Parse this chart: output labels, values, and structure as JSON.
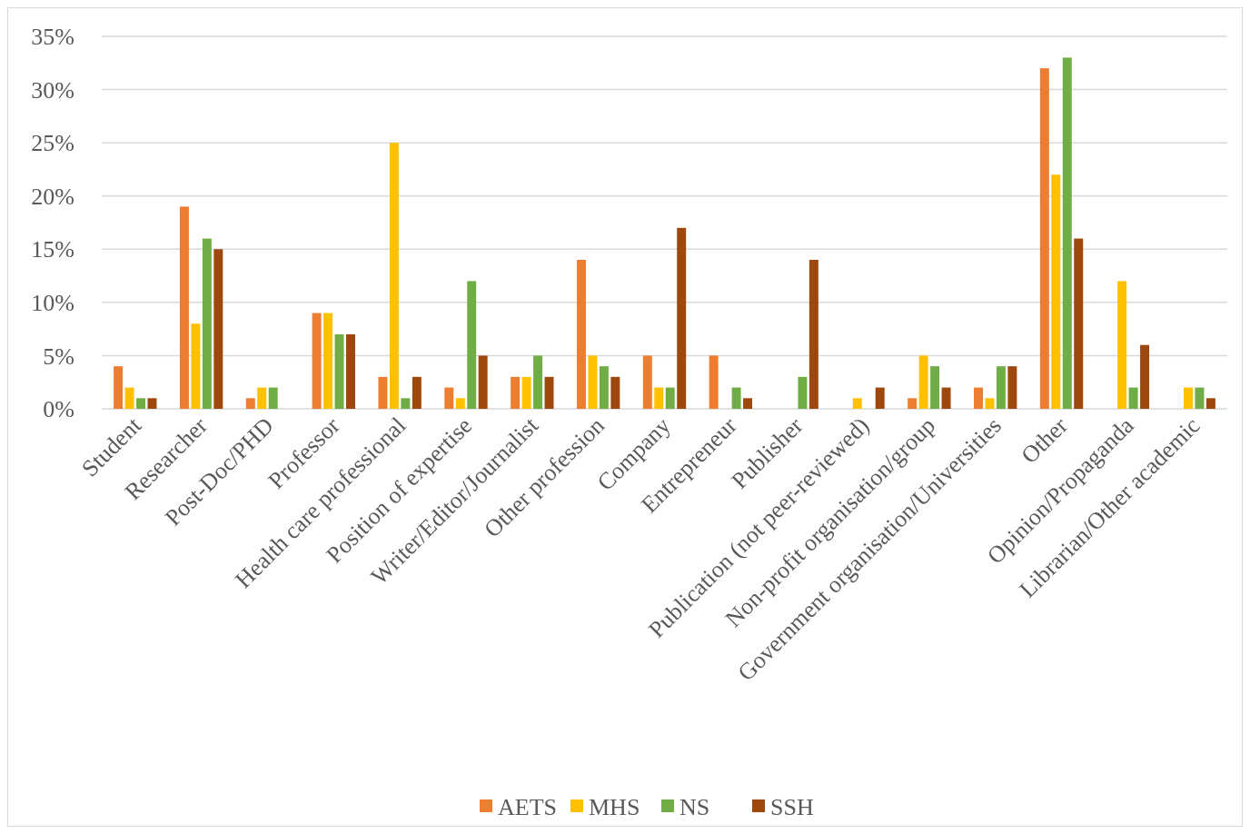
{
  "chart_data": {
    "type": "bar",
    "categories": [
      "Student",
      "Researcher",
      "Post-Doc/PHD",
      "Professor",
      "Health care professional",
      "Position of expertise",
      "Writer/Editor/Journalist",
      "Other profession",
      "Company",
      "Entrepreneur",
      "Publisher",
      "Publication (not peer-reviewed)",
      "Non-profit organisation/group",
      "Government organisation/Universities",
      "Other",
      "Opinion/Propaganda",
      "Librarian/Other academic"
    ],
    "series": [
      {
        "name": "AETS",
        "color": "#ed7d31",
        "values": [
          4,
          19,
          1,
          9,
          3,
          2,
          3,
          14,
          5,
          5,
          null,
          null,
          1,
          2,
          32,
          null,
          null
        ]
      },
      {
        "name": "MHS",
        "color": "#ffc000",
        "values": [
          2,
          8,
          2,
          9,
          25,
          1,
          3,
          5,
          2,
          null,
          null,
          1,
          5,
          1,
          22,
          12,
          2
        ]
      },
      {
        "name": "NS",
        "color": "#70ad47",
        "values": [
          1,
          16,
          2,
          7,
          1,
          12,
          5,
          4,
          2,
          2,
          3,
          null,
          4,
          4,
          33,
          2,
          2
        ]
      },
      {
        "name": "SSH",
        "color": "#9e480e",
        "values": [
          1,
          15,
          null,
          7,
          3,
          5,
          3,
          3,
          17,
          1,
          14,
          2,
          2,
          4,
          16,
          6,
          1
        ]
      }
    ],
    "ylim": [
      0,
      35
    ],
    "yticks": [
      {
        "value": 0,
        "label": "0%"
      },
      {
        "value": 5,
        "label": "5%"
      },
      {
        "value": 10,
        "label": "10%"
      },
      {
        "value": 15,
        "label": "15%"
      },
      {
        "value": 20,
        "label": "20%"
      },
      {
        "value": 25,
        "label": "25%"
      },
      {
        "value": 30,
        "label": "30%"
      },
      {
        "value": 35,
        "label": "35%"
      }
    ],
    "grid": "y",
    "legend": "bottom"
  }
}
